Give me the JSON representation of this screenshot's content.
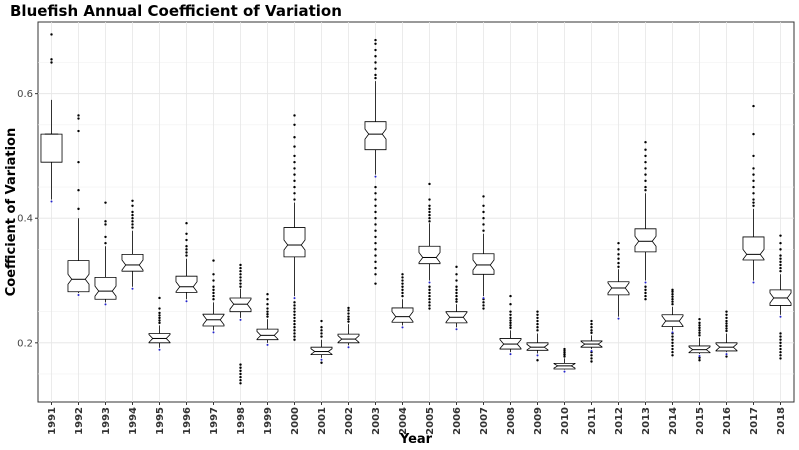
{
  "chart_data": {
    "type": "box",
    "title": "Bluefish Annual Coefficient of Variation",
    "xlabel": "Year",
    "ylabel": "Coefficient of Variation",
    "ylim": [
      0.105,
      0.715
    ],
    "yticks": [
      0.2,
      0.4,
      0.6
    ],
    "grid": true,
    "series": [
      {
        "year": "1991",
        "whislo": 0.43,
        "q1": 0.49,
        "med": 0.535,
        "q3": 0.535,
        "whishi": 0.59,
        "outlo": [],
        "outhi": [
          0.65,
          0.655,
          0.695
        ]
      },
      {
        "year": "1992",
        "whislo": 0.28,
        "q1": 0.282,
        "med": 0.302,
        "q3": 0.332,
        "whishi": 0.4,
        "outlo": [],
        "outhi": [
          0.415,
          0.445,
          0.49,
          0.54,
          0.56,
          0.565
        ]
      },
      {
        "year": "1993",
        "whislo": 0.265,
        "q1": 0.27,
        "med": 0.283,
        "q3": 0.305,
        "whishi": 0.355,
        "outlo": [],
        "outhi": [
          0.36,
          0.37,
          0.39,
          0.395,
          0.425
        ]
      },
      {
        "year": "1994",
        "whislo": 0.29,
        "q1": 0.315,
        "med": 0.325,
        "q3": 0.342,
        "whishi": 0.38,
        "outlo": [],
        "outhi": [
          0.385,
          0.39,
          0.395,
          0.4,
          0.405,
          0.41,
          0.42,
          0.428
        ]
      },
      {
        "year": "1995",
        "whislo": 0.192,
        "q1": 0.2,
        "med": 0.207,
        "q3": 0.215,
        "whishi": 0.228,
        "outlo": [],
        "outhi": [
          0.232,
          0.236,
          0.24,
          0.244,
          0.248,
          0.255,
          0.272
        ]
      },
      {
        "year": "1996",
        "whislo": 0.27,
        "q1": 0.281,
        "med": 0.29,
        "q3": 0.307,
        "whishi": 0.335,
        "outlo": [],
        "outhi": [
          0.34,
          0.345,
          0.35,
          0.355,
          0.365,
          0.375,
          0.392
        ]
      },
      {
        "year": "1997",
        "whislo": 0.22,
        "q1": 0.227,
        "med": 0.237,
        "q3": 0.246,
        "whishi": 0.265,
        "outlo": [],
        "outhi": [
          0.27,
          0.275,
          0.28,
          0.285,
          0.29,
          0.3,
          0.31,
          0.332
        ]
      },
      {
        "year": "1998",
        "whislo": 0.24,
        "q1": 0.25,
        "med": 0.262,
        "q3": 0.272,
        "whishi": 0.287,
        "outlo": [
          0.135,
          0.14,
          0.145,
          0.15,
          0.155,
          0.16,
          0.165
        ],
        "outhi": [
          0.29,
          0.295,
          0.3,
          0.305,
          0.31,
          0.315,
          0.32,
          0.325
        ]
      },
      {
        "year": "1999",
        "whislo": 0.2,
        "q1": 0.205,
        "med": 0.212,
        "q3": 0.222,
        "whishi": 0.238,
        "outlo": [],
        "outhi": [
          0.242,
          0.246,
          0.25,
          0.255,
          0.262,
          0.27,
          0.278
        ]
      },
      {
        "year": "2000",
        "whislo": 0.275,
        "q1": 0.338,
        "med": 0.357,
        "q3": 0.385,
        "whishi": 0.425,
        "outlo": [
          0.205,
          0.21,
          0.215,
          0.22,
          0.225,
          0.23,
          0.235,
          0.24,
          0.245,
          0.25,
          0.255,
          0.26,
          0.265
        ],
        "outhi": [
          0.43,
          0.44,
          0.45,
          0.46,
          0.47,
          0.48,
          0.49,
          0.5,
          0.515,
          0.53,
          0.55,
          0.565
        ]
      },
      {
        "year": "2001",
        "whislo": 0.176,
        "q1": 0.181,
        "med": 0.186,
        "q3": 0.193,
        "whishi": 0.205,
        "outlo": [
          0.168
        ],
        "outhi": [
          0.21,
          0.215,
          0.22,
          0.225,
          0.235
        ]
      },
      {
        "year": "2002",
        "whislo": 0.196,
        "q1": 0.2,
        "med": 0.206,
        "q3": 0.214,
        "whishi": 0.23,
        "outlo": [],
        "outhi": [
          0.234,
          0.238,
          0.242,
          0.247,
          0.252,
          0.256
        ]
      },
      {
        "year": "2003",
        "whislo": 0.47,
        "q1": 0.51,
        "med": 0.535,
        "q3": 0.555,
        "whishi": 0.62,
        "outlo": [
          0.295,
          0.31,
          0.32,
          0.33,
          0.34,
          0.35,
          0.36,
          0.37,
          0.38,
          0.39,
          0.4,
          0.41,
          0.42,
          0.43,
          0.44,
          0.45
        ],
        "outhi": [
          0.625,
          0.63,
          0.64,
          0.65,
          0.66,
          0.67,
          0.68,
          0.686
        ]
      },
      {
        "year": "2004",
        "whislo": 0.228,
        "q1": 0.233,
        "med": 0.242,
        "q3": 0.256,
        "whishi": 0.27,
        "outlo": [],
        "outhi": [
          0.275,
          0.28,
          0.285,
          0.29,
          0.295,
          0.3,
          0.305,
          0.31
        ]
      },
      {
        "year": "2005",
        "whislo": 0.3,
        "q1": 0.327,
        "med": 0.337,
        "q3": 0.355,
        "whishi": 0.392,
        "outlo": [
          0.255,
          0.26,
          0.265,
          0.27,
          0.275,
          0.28,
          0.285,
          0.29
        ],
        "outhi": [
          0.395,
          0.4,
          0.405,
          0.41,
          0.415,
          0.42,
          0.43,
          0.455
        ]
      },
      {
        "year": "2006",
        "whislo": 0.225,
        "q1": 0.232,
        "med": 0.241,
        "q3": 0.25,
        "whishi": 0.262,
        "outlo": [],
        "outhi": [
          0.266,
          0.27,
          0.275,
          0.28,
          0.285,
          0.29,
          0.3,
          0.31,
          0.322
        ]
      },
      {
        "year": "2007",
        "whislo": 0.275,
        "q1": 0.31,
        "med": 0.325,
        "q3": 0.343,
        "whishi": 0.375,
        "outlo": [
          0.255,
          0.26,
          0.265,
          0.27
        ],
        "outhi": [
          0.38,
          0.39,
          0.4,
          0.41,
          0.42,
          0.435
        ]
      },
      {
        "year": "2008",
        "whislo": 0.185,
        "q1": 0.19,
        "med": 0.198,
        "q3": 0.207,
        "whishi": 0.22,
        "outlo": [],
        "outhi": [
          0.224,
          0.228,
          0.232,
          0.236,
          0.24,
          0.245,
          0.25,
          0.262,
          0.275
        ]
      },
      {
        "year": "2009",
        "whislo": 0.183,
        "q1": 0.188,
        "med": 0.193,
        "q3": 0.2,
        "whishi": 0.215,
        "outlo": [
          0.172
        ],
        "outhi": [
          0.22,
          0.225,
          0.23,
          0.235,
          0.24,
          0.245,
          0.25
        ]
      },
      {
        "year": "2010",
        "whislo": 0.157,
        "q1": 0.158,
        "med": 0.163,
        "q3": 0.167,
        "whishi": 0.175,
        "outlo": [],
        "outhi": [
          0.178,
          0.181,
          0.184,
          0.187,
          0.19
        ]
      },
      {
        "year": "2011",
        "whislo": 0.19,
        "q1": 0.193,
        "med": 0.198,
        "q3": 0.203,
        "whishi": 0.212,
        "outlo": [
          0.17,
          0.175,
          0.18,
          0.185
        ],
        "outhi": [
          0.216,
          0.22,
          0.225,
          0.23,
          0.235
        ]
      },
      {
        "year": "2012",
        "whislo": 0.242,
        "q1": 0.277,
        "med": 0.288,
        "q3": 0.298,
        "whishi": 0.318,
        "outlo": [],
        "outhi": [
          0.322,
          0.328,
          0.335,
          0.342,
          0.35,
          0.36
        ]
      },
      {
        "year": "2013",
        "whislo": 0.3,
        "q1": 0.346,
        "med": 0.363,
        "q3": 0.383,
        "whishi": 0.44,
        "outlo": [
          0.27,
          0.275,
          0.28,
          0.285,
          0.29
        ],
        "outhi": [
          0.445,
          0.45,
          0.46,
          0.47,
          0.48,
          0.49,
          0.5,
          0.51,
          0.522
        ]
      },
      {
        "year": "2014",
        "whislo": 0.22,
        "q1": 0.226,
        "med": 0.235,
        "q3": 0.245,
        "whishi": 0.258,
        "outlo": [
          0.18,
          0.185,
          0.19,
          0.195,
          0.2,
          0.205,
          0.21,
          0.215
        ],
        "outhi": [
          0.262,
          0.266,
          0.27,
          0.274,
          0.278,
          0.282,
          0.285
        ]
      },
      {
        "year": "2015",
        "whislo": 0.182,
        "q1": 0.184,
        "med": 0.189,
        "q3": 0.195,
        "whishi": 0.208,
        "outlo": [
          0.172,
          0.176
        ],
        "outhi": [
          0.212,
          0.216,
          0.22,
          0.224,
          0.228,
          0.232,
          0.238
        ]
      },
      {
        "year": "2016",
        "whislo": 0.185,
        "q1": 0.187,
        "med": 0.193,
        "q3": 0.2,
        "whishi": 0.215,
        "outlo": [
          0.178
        ],
        "outhi": [
          0.219,
          0.223,
          0.227,
          0.231,
          0.235,
          0.24,
          0.245,
          0.25
        ]
      },
      {
        "year": "2017",
        "whislo": 0.3,
        "q1": 0.333,
        "med": 0.342,
        "q3": 0.37,
        "whishi": 0.415,
        "outlo": [],
        "outhi": [
          0.42,
          0.425,
          0.43,
          0.44,
          0.45,
          0.46,
          0.47,
          0.48,
          0.5,
          0.535,
          0.58
        ]
      },
      {
        "year": "2018",
        "whislo": 0.245,
        "q1": 0.26,
        "med": 0.272,
        "q3": 0.285,
        "whishi": 0.31,
        "outlo": [
          0.175,
          0.18,
          0.185,
          0.19,
          0.195,
          0.2,
          0.205,
          0.21,
          0.215
        ],
        "outhi": [
          0.315,
          0.32,
          0.325,
          0.33,
          0.335,
          0.34,
          0.35,
          0.36,
          0.372
        ]
      }
    ]
  }
}
